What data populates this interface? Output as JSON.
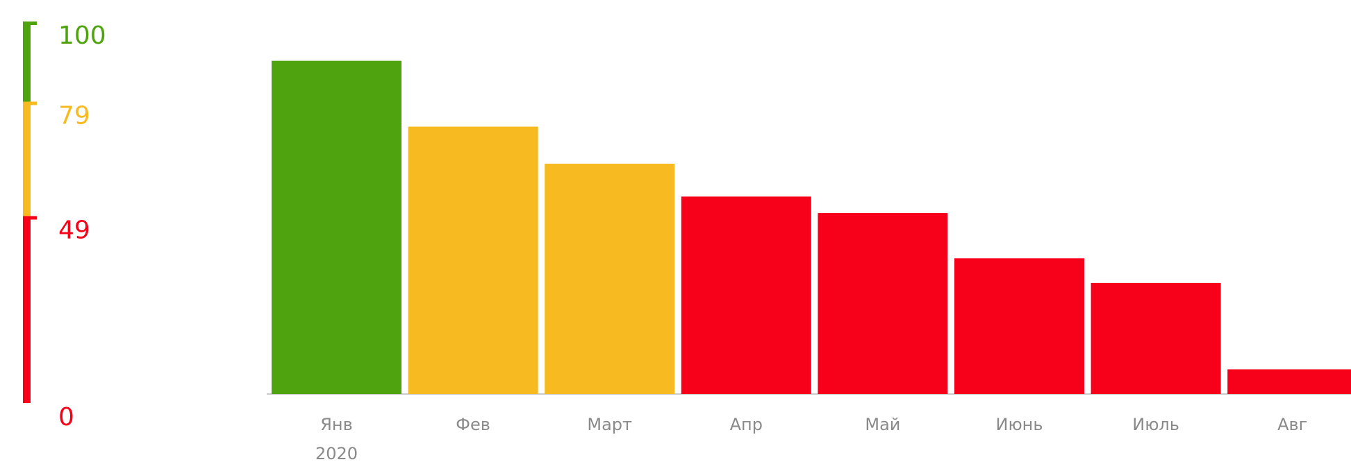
{
  "chart_data": {
    "type": "bar",
    "categories": [
      "Янв",
      "Фев",
      "Март",
      "Апр",
      "Май",
      "Июнь",
      "Июль",
      "Авг"
    ],
    "year_label": "2020",
    "values": [
      81,
      65,
      56,
      48,
      44,
      33,
      27,
      6
    ],
    "ylim": [
      0,
      100
    ],
    "scale_ticks": [
      0,
      49,
      79,
      100
    ],
    "scale_colors": [
      "#f70019",
      "#f7bb21",
      "#4ea30f"
    ]
  }
}
